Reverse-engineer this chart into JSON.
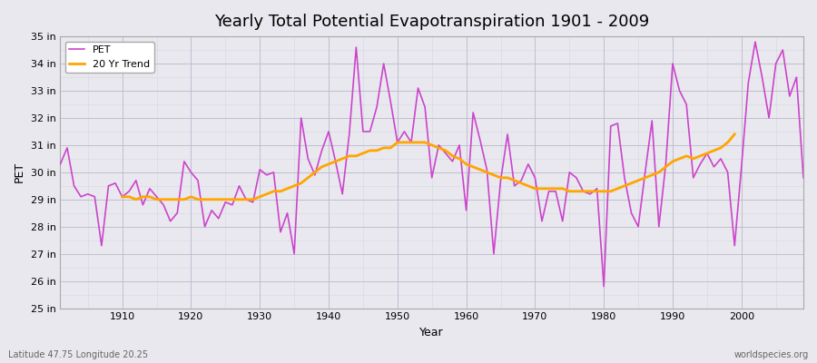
{
  "title": "Yearly Total Potential Evapotranspiration 1901 - 2009",
  "xlabel": "Year",
  "ylabel": "PET",
  "ylim": [
    25,
    35
  ],
  "yticks": [
    25,
    26,
    27,
    28,
    29,
    30,
    31,
    32,
    33,
    34,
    35
  ],
  "ytick_labels": [
    "25 in",
    "26 in",
    "27 in",
    "28 in",
    "29 in",
    "30 in",
    "31 in",
    "32 in",
    "33 in",
    "34 in",
    "35 in"
  ],
  "pet_color": "#CC44CC",
  "trend_color": "#FFA500",
  "fig_bg_color": "#E8E8EE",
  "plot_bg_color": "#E8E8EE",
  "legend_labels": [
    "PET",
    "20 Yr Trend"
  ],
  "bottom_left_text": "Latitude 47.75 Longitude 20.25",
  "bottom_right_text": "worldspecies.org",
  "years": [
    1901,
    1902,
    1903,
    1904,
    1905,
    1906,
    1907,
    1908,
    1909,
    1910,
    1911,
    1912,
    1913,
    1914,
    1915,
    1916,
    1917,
    1918,
    1919,
    1920,
    1921,
    1922,
    1923,
    1924,
    1925,
    1926,
    1927,
    1928,
    1929,
    1930,
    1931,
    1932,
    1933,
    1934,
    1935,
    1936,
    1937,
    1938,
    1939,
    1940,
    1941,
    1942,
    1943,
    1944,
    1945,
    1946,
    1947,
    1948,
    1949,
    1950,
    1951,
    1952,
    1953,
    1954,
    1955,
    1956,
    1957,
    1958,
    1959,
    1960,
    1961,
    1962,
    1963,
    1964,
    1965,
    1966,
    1967,
    1968,
    1969,
    1970,
    1971,
    1972,
    1973,
    1974,
    1975,
    1976,
    1977,
    1978,
    1979,
    1980,
    1981,
    1982,
    1983,
    1984,
    1985,
    1986,
    1987,
    1988,
    1989,
    1990,
    1991,
    1992,
    1993,
    1994,
    1995,
    1996,
    1997,
    1998,
    1999,
    2000,
    2001,
    2002,
    2003,
    2004,
    2005,
    2006,
    2007,
    2008,
    2009
  ],
  "pet_values": [
    30.3,
    30.9,
    29.5,
    29.1,
    29.2,
    29.1,
    27.3,
    29.5,
    29.6,
    29.1,
    29.3,
    29.7,
    28.8,
    29.4,
    29.1,
    28.8,
    28.2,
    28.5,
    30.4,
    30.0,
    29.7,
    28.0,
    28.6,
    28.3,
    28.9,
    28.8,
    29.5,
    29.0,
    28.9,
    30.1,
    29.9,
    30.0,
    27.8,
    28.5,
    27.0,
    32.0,
    30.5,
    29.9,
    30.8,
    31.5,
    30.4,
    29.2,
    31.4,
    34.6,
    31.5,
    31.5,
    32.4,
    34.0,
    32.6,
    31.1,
    31.5,
    31.1,
    33.1,
    32.4,
    29.8,
    31.0,
    30.7,
    30.4,
    31.0,
    28.6,
    32.2,
    31.2,
    30.1,
    27.0,
    29.7,
    31.4,
    29.5,
    29.7,
    30.3,
    29.8,
    28.2,
    29.3,
    29.3,
    28.2,
    30.0,
    29.8,
    29.3,
    29.2,
    29.4,
    25.8,
    31.7,
    31.8,
    29.8,
    28.5,
    28.0,
    30.0,
    31.9,
    28.0,
    30.3,
    34.0,
    33.0,
    32.5,
    29.8,
    30.3,
    30.7,
    30.2,
    30.5,
    30.0,
    27.3,
    30.2,
    33.3,
    34.8,
    33.5,
    32.0,
    34.0,
    34.5,
    32.8,
    33.5,
    29.8
  ],
  "trend_values": [
    null,
    null,
    null,
    null,
    null,
    null,
    null,
    null,
    null,
    29.1,
    29.1,
    29.0,
    29.1,
    29.1,
    29.0,
    29.0,
    29.0,
    29.0,
    29.0,
    29.1,
    29.0,
    29.0,
    29.0,
    29.0,
    29.0,
    29.0,
    29.0,
    29.0,
    29.0,
    29.1,
    29.2,
    29.3,
    29.3,
    29.4,
    29.5,
    29.6,
    29.8,
    30.0,
    30.2,
    30.3,
    30.4,
    30.5,
    30.6,
    30.6,
    30.7,
    30.8,
    30.8,
    30.9,
    30.9,
    31.1,
    31.1,
    31.1,
    31.1,
    31.1,
    31.0,
    30.9,
    30.8,
    30.6,
    30.5,
    30.3,
    30.2,
    30.1,
    30.0,
    29.9,
    29.8,
    29.8,
    29.7,
    29.6,
    29.5,
    29.4,
    29.4,
    29.4,
    29.4,
    29.4,
    29.3,
    29.3,
    29.3,
    29.3,
    29.3,
    29.3,
    29.3,
    29.4,
    29.5,
    29.6,
    29.7,
    29.8,
    29.9,
    30.0,
    30.2,
    30.4,
    30.5,
    30.6,
    30.5,
    30.6,
    30.7,
    30.8,
    30.9,
    31.1,
    31.4,
    null,
    null,
    null,
    null,
    null,
    null,
    null,
    null,
    null,
    null
  ]
}
